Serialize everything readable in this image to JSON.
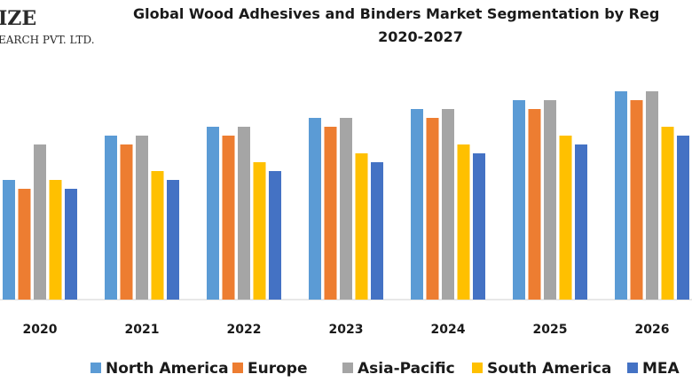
{
  "logo": {
    "line1": "IZE",
    "line2": "EARCH PVT. LTD."
  },
  "chart_data": {
    "type": "bar",
    "title_line1": "Global Wood Adhesives and Binders Market Segmentation by Reg",
    "title_line2": "2020-2027",
    "categories": [
      "2020",
      "2021",
      "2022",
      "2023",
      "2024",
      "2025",
      "2026"
    ],
    "series": [
      {
        "name": "North America",
        "color": "#5B9BD5",
        "values": [
          13.5,
          18.5,
          19.5,
          20.5,
          21.5,
          22.5,
          23.5
        ]
      },
      {
        "name": "Europe",
        "color": "#ED7D31",
        "values": [
          12.5,
          17.5,
          18.5,
          19.5,
          20.5,
          21.5,
          22.5
        ]
      },
      {
        "name": "Asia-Pacific",
        "color": "#A5A5A5",
        "values": [
          17.5,
          18.5,
          19.5,
          20.5,
          21.5,
          22.5,
          23.5
        ]
      },
      {
        "name": "South America",
        "color": "#FFC000",
        "values": [
          13.5,
          14.5,
          15.5,
          16.5,
          17.5,
          18.5,
          19.5
        ]
      },
      {
        "name": "MEA",
        "color": "#4472C4",
        "values": [
          12.5,
          13.5,
          14.5,
          15.5,
          16.5,
          17.5,
          18.5
        ]
      }
    ],
    "ylim": [
      0,
      25
    ],
    "grid": false,
    "legend_position": "bottom"
  }
}
